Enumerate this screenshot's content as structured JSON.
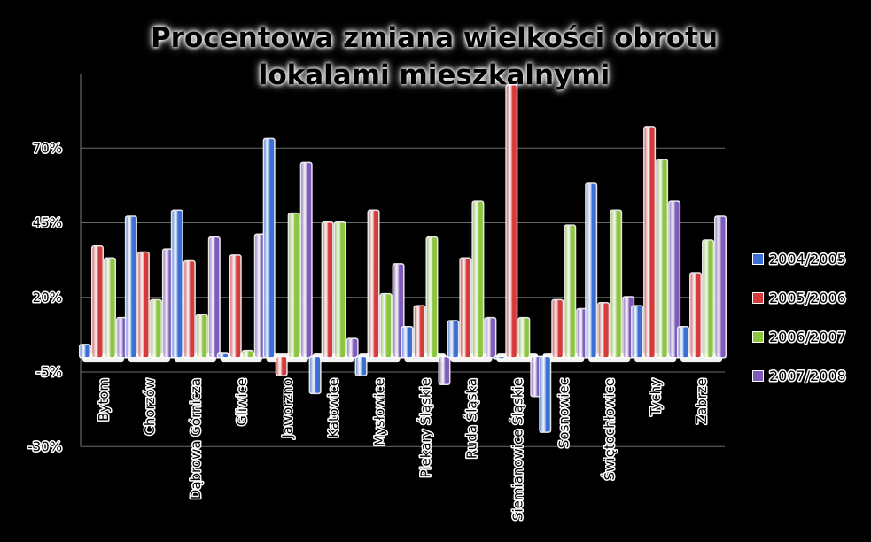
{
  "chart_data": {
    "type": "bar",
    "title_lines": [
      "Procentowa zmiana wielkości obrotu",
      "lokalami mieszkalnymi"
    ],
    "xlabel": "",
    "ylabel": "",
    "ylim": [
      -30,
      95
    ],
    "ytick_labels": [
      "-30%",
      "-5%",
      "20%",
      "45%",
      "70%"
    ],
    "ytick_values": [
      -30,
      -5,
      20,
      45,
      70
    ],
    "grid": true,
    "legend_position": "right",
    "categories": [
      "Bytom",
      "Chorzów",
      "Dąbrowa Górnicza",
      "Gliwice",
      "Jaworzno",
      "Katowice",
      "Mysłowice",
      "Piekary Śląskie",
      "Ruda Śląska",
      "Siemianowice Śląskie",
      "Sosnowiec",
      "Świętochłowice",
      "Tychy",
      "Zabrze"
    ],
    "series": [
      {
        "name": "2004/2005",
        "color": "#3b6fd6",
        "values": [
          4,
          47,
          49,
          1,
          73,
          -12,
          -6,
          10,
          12,
          0,
          -25,
          58,
          17,
          10
        ]
      },
      {
        "name": "2005/2006",
        "color": "#d63a3a",
        "values": [
          37,
          35,
          32,
          34,
          -6,
          45,
          49,
          17,
          33,
          91,
          19,
          18,
          77,
          28
        ]
      },
      {
        "name": "2006/2007",
        "color": "#8cc63f",
        "values": [
          33,
          19,
          14,
          2,
          48,
          45,
          21,
          40,
          52,
          13,
          44,
          49,
          66,
          39
        ]
      },
      {
        "name": "2007/2008",
        "color": "#7e5bbd",
        "values": [
          13,
          36,
          40,
          41,
          65,
          6,
          31,
          -9,
          13,
          -13,
          16,
          20,
          52,
          47
        ]
      }
    ]
  }
}
